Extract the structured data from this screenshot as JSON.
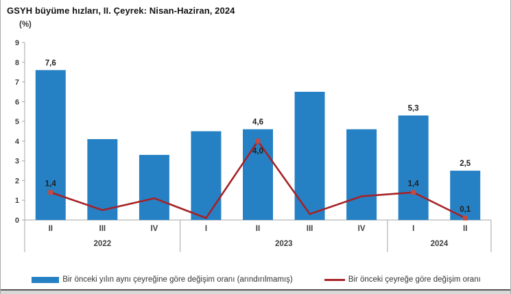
{
  "header": {
    "title": "GSYH büyüme hızları, II. Çeyrek: Nisan-Haziran, 2024",
    "unit_label": "(%)"
  },
  "colors": {
    "bar": "#2581C4",
    "line": "#A62126",
    "marker": "#C24A42",
    "axis": "#A6A6A6",
    "data_label": "#1f1f1f",
    "tick_text": "#3f3f3f"
  },
  "chart_data": {
    "type": "bar",
    "note": "combined bar + line chart",
    "categories": [
      "II",
      "III",
      "IV",
      "I",
      "II",
      "III",
      "IV",
      "I",
      "II"
    ],
    "year_groups": [
      {
        "label": "2022",
        "count": 3
      },
      {
        "label": "2023",
        "count": 4
      },
      {
        "label": "2024",
        "count": 2
      }
    ],
    "title": "GSYH büyüme hızları, II. Çeyrek: Nisan-Haziran, 2024",
    "xlabel": "",
    "ylabel": "(%)",
    "ylim": [
      0,
      9
    ],
    "yticks": [
      0,
      1,
      2,
      3,
      4,
      5,
      6,
      7,
      8,
      9
    ],
    "grid": "off",
    "legend_position": "bottom",
    "series": [
      {
        "name": "Bir önceki yılın aynı çeyreğine göre değişim oranı (arındırılmamış)",
        "type": "bar",
        "values": [
          7.6,
          4.1,
          3.3,
          4.5,
          4.6,
          6.5,
          4.6,
          5.3,
          2.5
        ],
        "labels": [
          "7,6",
          null,
          null,
          null,
          "4,6",
          null,
          null,
          "5,3",
          "2,5"
        ]
      },
      {
        "name": "Bir önceki çeyreğe göre değişim oranı",
        "type": "line",
        "values": [
          1.4,
          0.5,
          1.1,
          0.1,
          4.0,
          0.3,
          1.2,
          1.4,
          0.1
        ],
        "labels": [
          "1,4",
          null,
          null,
          null,
          "4,0",
          null,
          null,
          "1,4",
          "0,1"
        ],
        "label_positions": [
          "above",
          null,
          null,
          null,
          "below",
          null,
          null,
          "above",
          "above"
        ]
      }
    ]
  },
  "legend": {
    "items": [
      {
        "label": "Bir önceki yılın aynı çeyreğine göre değişim oranı (arındırılmamış)"
      },
      {
        "label": "Bir önceki çeyreğe göre değişim oranı"
      }
    ]
  }
}
